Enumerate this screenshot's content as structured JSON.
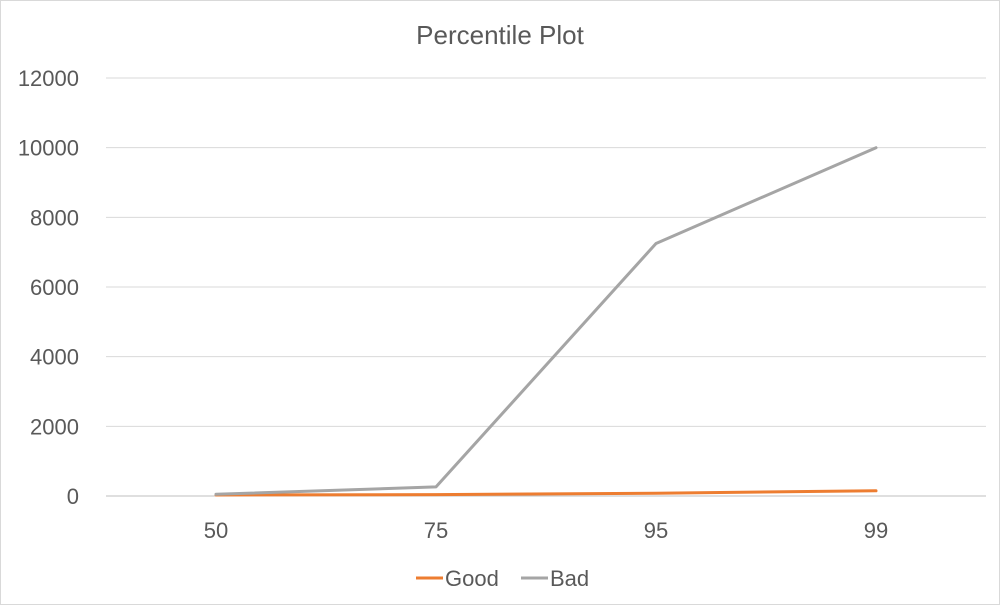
{
  "chart_data": {
    "type": "line",
    "title": "Percentile Plot",
    "xlabel": "",
    "ylabel": "",
    "categories": [
      "50",
      "75",
      "95",
      "99"
    ],
    "ylim": [
      0,
      12000
    ],
    "yticks": [
      0,
      2000,
      4000,
      6000,
      8000,
      10000,
      12000
    ],
    "grid": true,
    "legend_position": "bottom",
    "series": [
      {
        "name": "Good",
        "color": "#ed7d31",
        "values": [
          30,
          40,
          80,
          150
        ]
      },
      {
        "name": "Bad",
        "color": "#a5a5a5",
        "values": [
          50,
          260,
          7250,
          10000
        ]
      }
    ]
  }
}
